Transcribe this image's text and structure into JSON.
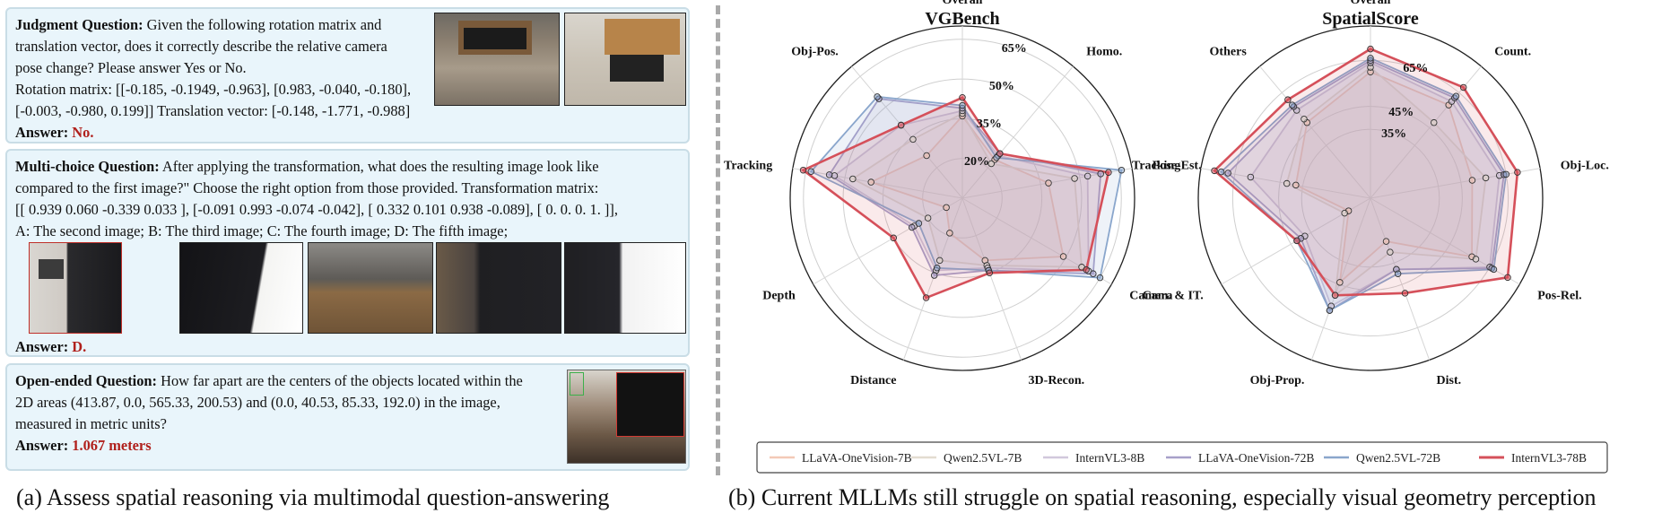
{
  "panel_a": {
    "judgment": {
      "label": "Judgment Question:",
      "lines": [
        " Given the following rotation matrix and",
        "translation vector, does it correctly describe the relative camera",
        "pose change? Please answer Yes or No.",
        "Rotation matrix: [[-0.185, -0.1949, -0.963], [0.983, -0.040, -0.180],",
        "[-0.003, -0.980, 0.199]]  Translation vector: [-0.148, -1.771, -0.988]"
      ],
      "answer_label": "Answer:",
      "answer": "No."
    },
    "multichoice": {
      "label": "Multi-choice Question:",
      "lines": [
        " After applying the transformation, what does the resulting image look like",
        "compared to the first image?\" Choose the right option from those provided. Transformation matrix:",
        "[[ 0.939 0.060 -0.339 0.033 ], [-0.091 0.993 -0.074 -0.042], [ 0.332 0.101 0.938 -0.089], [ 0. 0. 0. 1. ]],",
        "A: The second image; B: The third image; C: The fourth image; D: The fifth image;"
      ],
      "answer_label": "Answer:",
      "answer": "D."
    },
    "openended": {
      "label": "Open-ended Question:",
      "lines": [
        " How far apart are the centers of the objects located within the",
        "2D areas (413.87, 0.0, 565.33, 200.53) and (0.0, 40.53, 85.33, 192.0) in the image,",
        "measured in metric units?"
      ],
      "answer_label": "Answer:",
      "answer": "1.067 meters"
    },
    "caption": "(a) Assess spatial reasoning via multimodal question-answering"
  },
  "panel_b_caption": "(b) Current MLLMs still struggle on spatial reasoning, especially visual geometry perception",
  "legend": [
    {
      "name": "LLaVA-OneVision-7B",
      "color": "#f3c9b7"
    },
    {
      "name": "Qwen2.5VL-7B",
      "color": "#e3dcd0"
    },
    {
      "name": "InternVL3-8B",
      "color": "#d1c8dc"
    },
    {
      "name": "LLaVA-OneVision-72B",
      "color": "#a7a0c9"
    },
    {
      "name": "Qwen2.5VL-72B",
      "color": "#8aa6cc"
    },
    {
      "name": "InternVL3-78B",
      "color": "#d5505a"
    }
  ],
  "chart_data": [
    {
      "type": "radar",
      "title": "VGBench",
      "axes": [
        "Overall",
        "Homo.",
        "Pose-Est.",
        "Camera",
        "3D-Recon.",
        "Distance",
        "Depth",
        "Tracking",
        "Obj-Pos."
      ],
      "radial_ticks": [
        "20%",
        "35%",
        "50%",
        "65%"
      ],
      "radial_tick_values": [
        20,
        35,
        50,
        65
      ],
      "rlim": [
        5,
        70
      ],
      "series": [
        {
          "name": "LLaVA-OneVision-7B",
          "values": [
            36,
            24,
            38,
            49,
            30,
            19,
            12,
            40,
            26
          ]
        },
        {
          "name": "Qwen2.5VL-7B",
          "values": [
            37,
            22,
            48,
            57,
            32,
            30,
            20,
            47,
            34
          ]
        },
        {
          "name": "InternVL3-8B",
          "values": [
            38,
            26,
            53,
            60,
            33,
            34,
            26,
            54,
            41
          ]
        },
        {
          "name": "LLaVA-OneVision-72B",
          "values": [
            39,
            27,
            58,
            62,
            34,
            36,
            27,
            56,
            54
          ]
        },
        {
          "name": "Qwen2.5VL-72B",
          "values": [
            40,
            25,
            66,
            65,
            34,
            33,
            24,
            63,
            55
          ]
        },
        {
          "name": "InternVL3-78B",
          "values": [
            43,
            27,
            61,
            59,
            35,
            45,
            35,
            66,
            41
          ]
        }
      ]
    },
    {
      "type": "radar",
      "title": "SpatialScore",
      "axes": [
        "Overall",
        "Count.",
        "Obj-Loc.",
        "Pos-Rel.",
        "Dist.",
        "Obj-Prop.",
        "Cam. & IT.",
        "Tracking",
        "Others"
      ],
      "radial_ticks": [
        "35%",
        "45%",
        "65%"
      ],
      "radial_tick_values": [
        35,
        45,
        65
      ],
      "rlim": [
        5,
        80
      ],
      "series": [
        {
          "name": "LLaVA-OneVision-7B",
          "values": [
            60,
            58,
            50,
            56,
            25,
            44,
            16,
            38,
            48
          ]
        },
        {
          "name": "Qwen2.5VL-7B",
          "values": [
            62,
            48,
            56,
            58,
            30,
            50,
            18,
            42,
            50
          ]
        },
        {
          "name": "InternVL3-8B",
          "values": [
            64,
            60,
            62,
            65,
            38,
            55,
            38,
            58,
            55
          ]
        },
        {
          "name": "LLaVA-OneVision-72B",
          "values": [
            65,
            62,
            64,
            66,
            38,
            57,
            40,
            68,
            57
          ]
        },
        {
          "name": "Qwen2.5VL-72B",
          "values": [
            66,
            63,
            65,
            67,
            40,
            57,
            42,
            71,
            58
          ]
        },
        {
          "name": "InternVL3-78B",
          "values": [
            70,
            68,
            70,
            74,
            49,
            50,
            42,
            74,
            61
          ]
        }
      ]
    }
  ]
}
